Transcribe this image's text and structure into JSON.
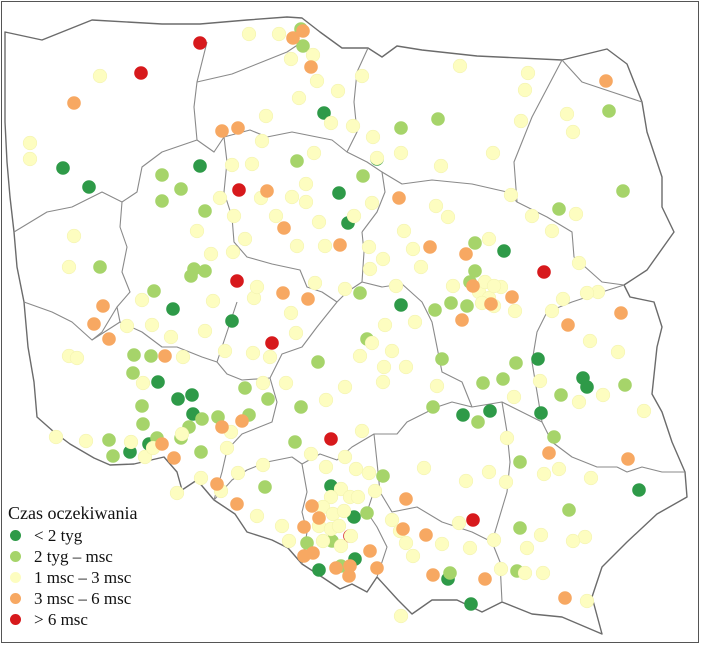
{
  "legend": {
    "title": "Czas oczekiwania",
    "items": [
      {
        "label": "< 2 tyg",
        "color": "#2e9a48"
      },
      {
        "label": "2 tyg – msc",
        "color": "#a6d46a"
      },
      {
        "label": "1 msc – 3 msc",
        "color": "#fdfdc0"
      },
      {
        "label": "3 msc – 6 msc",
        "color": "#f7a862"
      },
      {
        "label": "> 6 msc",
        "color": "#d7191c"
      }
    ]
  },
  "points": [
    [
      199,
      42,
      4
    ],
    [
      140,
      72,
      4
    ],
    [
      238,
      189,
      4
    ],
    [
      236,
      280,
      4
    ],
    [
      271,
      342,
      4
    ],
    [
      330,
      438,
      4
    ],
    [
      349,
      535,
      4
    ],
    [
      472,
      519,
      4
    ],
    [
      543,
      271,
      4
    ],
    [
      62,
      167,
      0
    ],
    [
      88,
      186,
      0
    ],
    [
      199,
      165,
      0
    ],
    [
      323,
      112,
      0
    ],
    [
      338,
      192,
      0
    ],
    [
      347,
      222,
      0
    ],
    [
      376,
      158,
      0
    ],
    [
      503,
      250,
      0
    ],
    [
      400,
      304,
      0
    ],
    [
      172,
      308,
      0
    ],
    [
      231,
      320,
      0
    ],
    [
      157,
      381,
      0
    ],
    [
      177,
      398,
      0
    ],
    [
      191,
      394,
      0
    ],
    [
      148,
      443,
      0
    ],
    [
      129,
      451,
      0
    ],
    [
      462,
      414,
      0
    ],
    [
      489,
      410,
      0
    ],
    [
      537,
      358,
      0
    ],
    [
      540,
      412,
      0
    ],
    [
      582,
      377,
      0
    ],
    [
      586,
      386,
      0
    ],
    [
      638,
      489,
      0
    ],
    [
      353,
      516,
      0
    ],
    [
      330,
      485,
      0
    ],
    [
      354,
      558,
      0
    ],
    [
      318,
      569,
      0
    ],
    [
      447,
      578,
      0
    ],
    [
      470,
      603,
      0
    ],
    [
      192,
      413,
      0
    ],
    [
      302,
      45,
      1
    ],
    [
      300,
      28,
      1
    ],
    [
      296,
      160,
      1
    ],
    [
      362,
      175,
      1
    ],
    [
      400,
      127,
      1
    ],
    [
      437,
      118,
      1
    ],
    [
      608,
      110,
      1
    ],
    [
      622,
      190,
      1
    ],
    [
      558,
      208,
      1
    ],
    [
      161,
      174,
      1
    ],
    [
      180,
      188,
      1
    ],
    [
      161,
      200,
      1
    ],
    [
      99,
      266,
      1
    ],
    [
      193,
      268,
      1
    ],
    [
      204,
      270,
      1
    ],
    [
      190,
      275,
      1
    ],
    [
      153,
      290,
      1
    ],
    [
      133,
      354,
      1
    ],
    [
      150,
      355,
      1
    ],
    [
      132,
      372,
      1
    ],
    [
      141,
      405,
      1
    ],
    [
      142,
      423,
      1
    ],
    [
      156,
      437,
      1
    ],
    [
      180,
      437,
      1
    ],
    [
      201,
      418,
      1
    ],
    [
      108,
      439,
      1
    ],
    [
      112,
      455,
      1
    ],
    [
      188,
      426,
      1
    ],
    [
      248,
      414,
      1
    ],
    [
      244,
      387,
      1
    ],
    [
      267,
      398,
      1
    ],
    [
      294,
      441,
      1
    ],
    [
      300,
      406,
      1
    ],
    [
      317,
      361,
      1
    ],
    [
      359,
      292,
      1
    ],
    [
      366,
      338,
      1
    ],
    [
      441,
      358,
      1
    ],
    [
      434,
      309,
      1
    ],
    [
      450,
      302,
      1
    ],
    [
      466,
      305,
      1
    ],
    [
      482,
      382,
      1
    ],
    [
      502,
      378,
      1
    ],
    [
      515,
      362,
      1
    ],
    [
      560,
      394,
      1
    ],
    [
      553,
      436,
      1
    ],
    [
      624,
      384,
      1
    ],
    [
      432,
      406,
      1
    ],
    [
      477,
      421,
      1
    ],
    [
      519,
      461,
      1
    ],
    [
      568,
      509,
      1
    ],
    [
      382,
      475,
      1
    ],
    [
      264,
      486,
      1
    ],
    [
      217,
      416,
      1
    ],
    [
      200,
      451,
      1
    ],
    [
      306,
      542,
      1
    ],
    [
      331,
      540,
      1
    ],
    [
      366,
      512,
      1
    ],
    [
      340,
      565,
      1
    ],
    [
      449,
      572,
      1
    ],
    [
      469,
      281,
      1
    ],
    [
      474,
      270,
      1
    ],
    [
      516,
      570,
      1
    ],
    [
      519,
      527,
      1
    ],
    [
      474,
      242,
      1
    ],
    [
      204,
      210,
      1
    ],
    [
      248,
      33,
      2
    ],
    [
      278,
      33,
      2
    ],
    [
      290,
      58,
      2
    ],
    [
      312,
      54,
      2
    ],
    [
      316,
      80,
      2
    ],
    [
      337,
      90,
      2
    ],
    [
      330,
      122,
      2
    ],
    [
      352,
      125,
      2
    ],
    [
      361,
      75,
      2
    ],
    [
      298,
      97,
      2
    ],
    [
      265,
      115,
      2
    ],
    [
      313,
      152,
      2
    ],
    [
      305,
      183,
      2
    ],
    [
      261,
      140,
      2
    ],
    [
      231,
      164,
      2
    ],
    [
      219,
      197,
      2
    ],
    [
      291,
      196,
      2
    ],
    [
      318,
      221,
      2
    ],
    [
      260,
      197,
      2
    ],
    [
      244,
      238,
      2
    ],
    [
      275,
      215,
      2
    ],
    [
      296,
      245,
      2
    ],
    [
      324,
      245,
      2
    ],
    [
      353,
      215,
      2
    ],
    [
      371,
      202,
      2
    ],
    [
      372,
      136,
      2
    ],
    [
      376,
      157,
      2
    ],
    [
      400,
      152,
      2
    ],
    [
      459,
      65,
      2
    ],
    [
      524,
      89,
      2
    ],
    [
      527,
      72,
      2
    ],
    [
      566,
      113,
      2
    ],
    [
      572,
      131,
      2
    ],
    [
      520,
      120,
      2
    ],
    [
      492,
      152,
      2
    ],
    [
      440,
      165,
      2
    ],
    [
      510,
      194,
      2
    ],
    [
      435,
      205,
      2
    ],
    [
      447,
      216,
      2
    ],
    [
      531,
      215,
      2
    ],
    [
      575,
      213,
      2
    ],
    [
      551,
      230,
      2
    ],
    [
      488,
      238,
      2
    ],
    [
      412,
      248,
      2
    ],
    [
      382,
      258,
      2
    ],
    [
      369,
      268,
      2
    ],
    [
      395,
      285,
      2
    ],
    [
      414,
      321,
      2
    ],
    [
      452,
      285,
      2
    ],
    [
      478,
      291,
      2
    ],
    [
      488,
      297,
      2
    ],
    [
      500,
      286,
      2
    ],
    [
      484,
      281,
      2
    ],
    [
      481,
      302,
      2
    ],
    [
      493,
      305,
      2
    ],
    [
      578,
      262,
      2
    ],
    [
      597,
      291,
      2
    ],
    [
      562,
      298,
      2
    ],
    [
      586,
      292,
      2
    ],
    [
      514,
      310,
      2
    ],
    [
      551,
      310,
      2
    ],
    [
      589,
      340,
      2
    ],
    [
      617,
      351,
      2
    ],
    [
      643,
      410,
      2
    ],
    [
      602,
      394,
      2
    ],
    [
      578,
      401,
      2
    ],
    [
      539,
      380,
      2
    ],
    [
      513,
      396,
      2
    ],
    [
      506,
      437,
      2
    ],
    [
      558,
      468,
      2
    ],
    [
      590,
      477,
      2
    ],
    [
      543,
      473,
      2
    ],
    [
      584,
      536,
      2
    ],
    [
      540,
      534,
      2
    ],
    [
      542,
      572,
      2
    ],
    [
      524,
      572,
      2
    ],
    [
      493,
      539,
      2
    ],
    [
      458,
      522,
      2
    ],
    [
      441,
      543,
      2
    ],
    [
      405,
      542,
      2
    ],
    [
      399,
      530,
      2
    ],
    [
      412,
      555,
      2
    ],
    [
      391,
      519,
      2
    ],
    [
      465,
      480,
      2
    ],
    [
      488,
      471,
      2
    ],
    [
      423,
      467,
      2
    ],
    [
      382,
      381,
      2
    ],
    [
      383,
      366,
      2
    ],
    [
      371,
      342,
      2
    ],
    [
      359,
      355,
      2
    ],
    [
      384,
      324,
      2
    ],
    [
      391,
      350,
      2
    ],
    [
      344,
      288,
      2
    ],
    [
      314,
      282,
      2
    ],
    [
      290,
      312,
      2
    ],
    [
      344,
      386,
      2
    ],
    [
      325,
      399,
      2
    ],
    [
      361,
      430,
      2
    ],
    [
      325,
      466,
      2
    ],
    [
      344,
      456,
      2
    ],
    [
      355,
      468,
      2
    ],
    [
      368,
      472,
      2
    ],
    [
      374,
      490,
      2
    ],
    [
      340,
      488,
      2
    ],
    [
      330,
      496,
      2
    ],
    [
      322,
      506,
      2
    ],
    [
      332,
      513,
      2
    ],
    [
      343,
      510,
      2
    ],
    [
      349,
      496,
      2
    ],
    [
      357,
      496,
      2
    ],
    [
      318,
      525,
      2
    ],
    [
      330,
      528,
      2
    ],
    [
      338,
      525,
      2
    ],
    [
      350,
      535,
      2
    ],
    [
      340,
      545,
      2
    ],
    [
      322,
      540,
      2
    ],
    [
      281,
      525,
      2
    ],
    [
      288,
      540,
      2
    ],
    [
      310,
      453,
      2
    ],
    [
      262,
      464,
      2
    ],
    [
      237,
      472,
      2
    ],
    [
      230,
      431,
      2
    ],
    [
      226,
      447,
      2
    ],
    [
      220,
      490,
      2
    ],
    [
      256,
      515,
      2
    ],
    [
      181,
      433,
      2
    ],
    [
      200,
      477,
      2
    ],
    [
      176,
      492,
      2
    ],
    [
      144,
      456,
      2
    ],
    [
      130,
      441,
      2
    ],
    [
      152,
      447,
      2
    ],
    [
      55,
      436,
      2
    ],
    [
      85,
      440,
      2
    ],
    [
      68,
      355,
      2
    ],
    [
      76,
      357,
      2
    ],
    [
      68,
      266,
      2
    ],
    [
      73,
      235,
      2
    ],
    [
      29,
      142,
      2
    ],
    [
      29,
      158,
      2
    ],
    [
      99,
      75,
      2
    ],
    [
      170,
      336,
      2
    ],
    [
      142,
      382,
      2
    ],
    [
      126,
      325,
      2
    ],
    [
      141,
      299,
      2
    ],
    [
      151,
      324,
      2
    ],
    [
      182,
      356,
      2
    ],
    [
      204,
      330,
      2
    ],
    [
      212,
      300,
      2
    ],
    [
      224,
      350,
      2
    ],
    [
      253,
      297,
      2
    ],
    [
      252,
      352,
      2
    ],
    [
      262,
      382,
      2
    ],
    [
      269,
      356,
      2
    ],
    [
      285,
      382,
      2
    ],
    [
      295,
      332,
      2
    ],
    [
      232,
      251,
      2
    ],
    [
      256,
      286,
      2
    ],
    [
      210,
      253,
      2
    ],
    [
      196,
      230,
      2
    ],
    [
      233,
      215,
      2
    ],
    [
      251,
      163,
      2
    ],
    [
      305,
      201,
      2
    ],
    [
      368,
      246,
      2
    ],
    [
      403,
      230,
      2
    ],
    [
      420,
      266,
      2
    ],
    [
      400,
      615,
      2
    ],
    [
      505,
      481,
      2
    ],
    [
      469,
      547,
      2
    ],
    [
      500,
      568,
      2
    ],
    [
      526,
      547,
      2
    ],
    [
      572,
      540,
      2
    ],
    [
      586,
      600,
      2
    ],
    [
      405,
      366,
      2
    ],
    [
      436,
      385,
      2
    ],
    [
      493,
      285,
      2
    ],
    [
      302,
      30,
      3
    ],
    [
      292,
      37,
      3
    ],
    [
      310,
      66,
      3
    ],
    [
      237,
      127,
      3
    ],
    [
      221,
      130,
      3
    ],
    [
      73,
      102,
      3
    ],
    [
      266,
      190,
      3
    ],
    [
      283,
      227,
      3
    ],
    [
      339,
      244,
      3
    ],
    [
      398,
      197,
      3
    ],
    [
      429,
      246,
      3
    ],
    [
      605,
      80,
      3
    ],
    [
      465,
      253,
      3
    ],
    [
      461,
      319,
      3
    ],
    [
      490,
      303,
      3
    ],
    [
      511,
      296,
      3
    ],
    [
      567,
      324,
      3
    ],
    [
      620,
      312,
      3
    ],
    [
      472,
      285,
      3
    ],
    [
      102,
      305,
      3
    ],
    [
      93,
      323,
      3
    ],
    [
      108,
      338,
      3
    ],
    [
      164,
      355,
      3
    ],
    [
      161,
      443,
      3
    ],
    [
      173,
      457,
      3
    ],
    [
      282,
      292,
      3
    ],
    [
      307,
      298,
      3
    ],
    [
      221,
      426,
      3
    ],
    [
      241,
      420,
      3
    ],
    [
      216,
      483,
      3
    ],
    [
      236,
      503,
      3
    ],
    [
      303,
      526,
      3
    ],
    [
      311,
      505,
      3
    ],
    [
      318,
      517,
      3
    ],
    [
      312,
      552,
      3
    ],
    [
      335,
      567,
      3
    ],
    [
      303,
      555,
      3
    ],
    [
      348,
      575,
      3
    ],
    [
      376,
      567,
      3
    ],
    [
      369,
      550,
      3
    ],
    [
      405,
      498,
      3
    ],
    [
      425,
      534,
      3
    ],
    [
      432,
      574,
      3
    ],
    [
      484,
      578,
      3
    ],
    [
      627,
      458,
      3
    ],
    [
      564,
      597,
      3
    ],
    [
      548,
      452,
      3
    ],
    [
      402,
      528,
      3
    ],
    [
      349,
      565,
      3
    ]
  ]
}
